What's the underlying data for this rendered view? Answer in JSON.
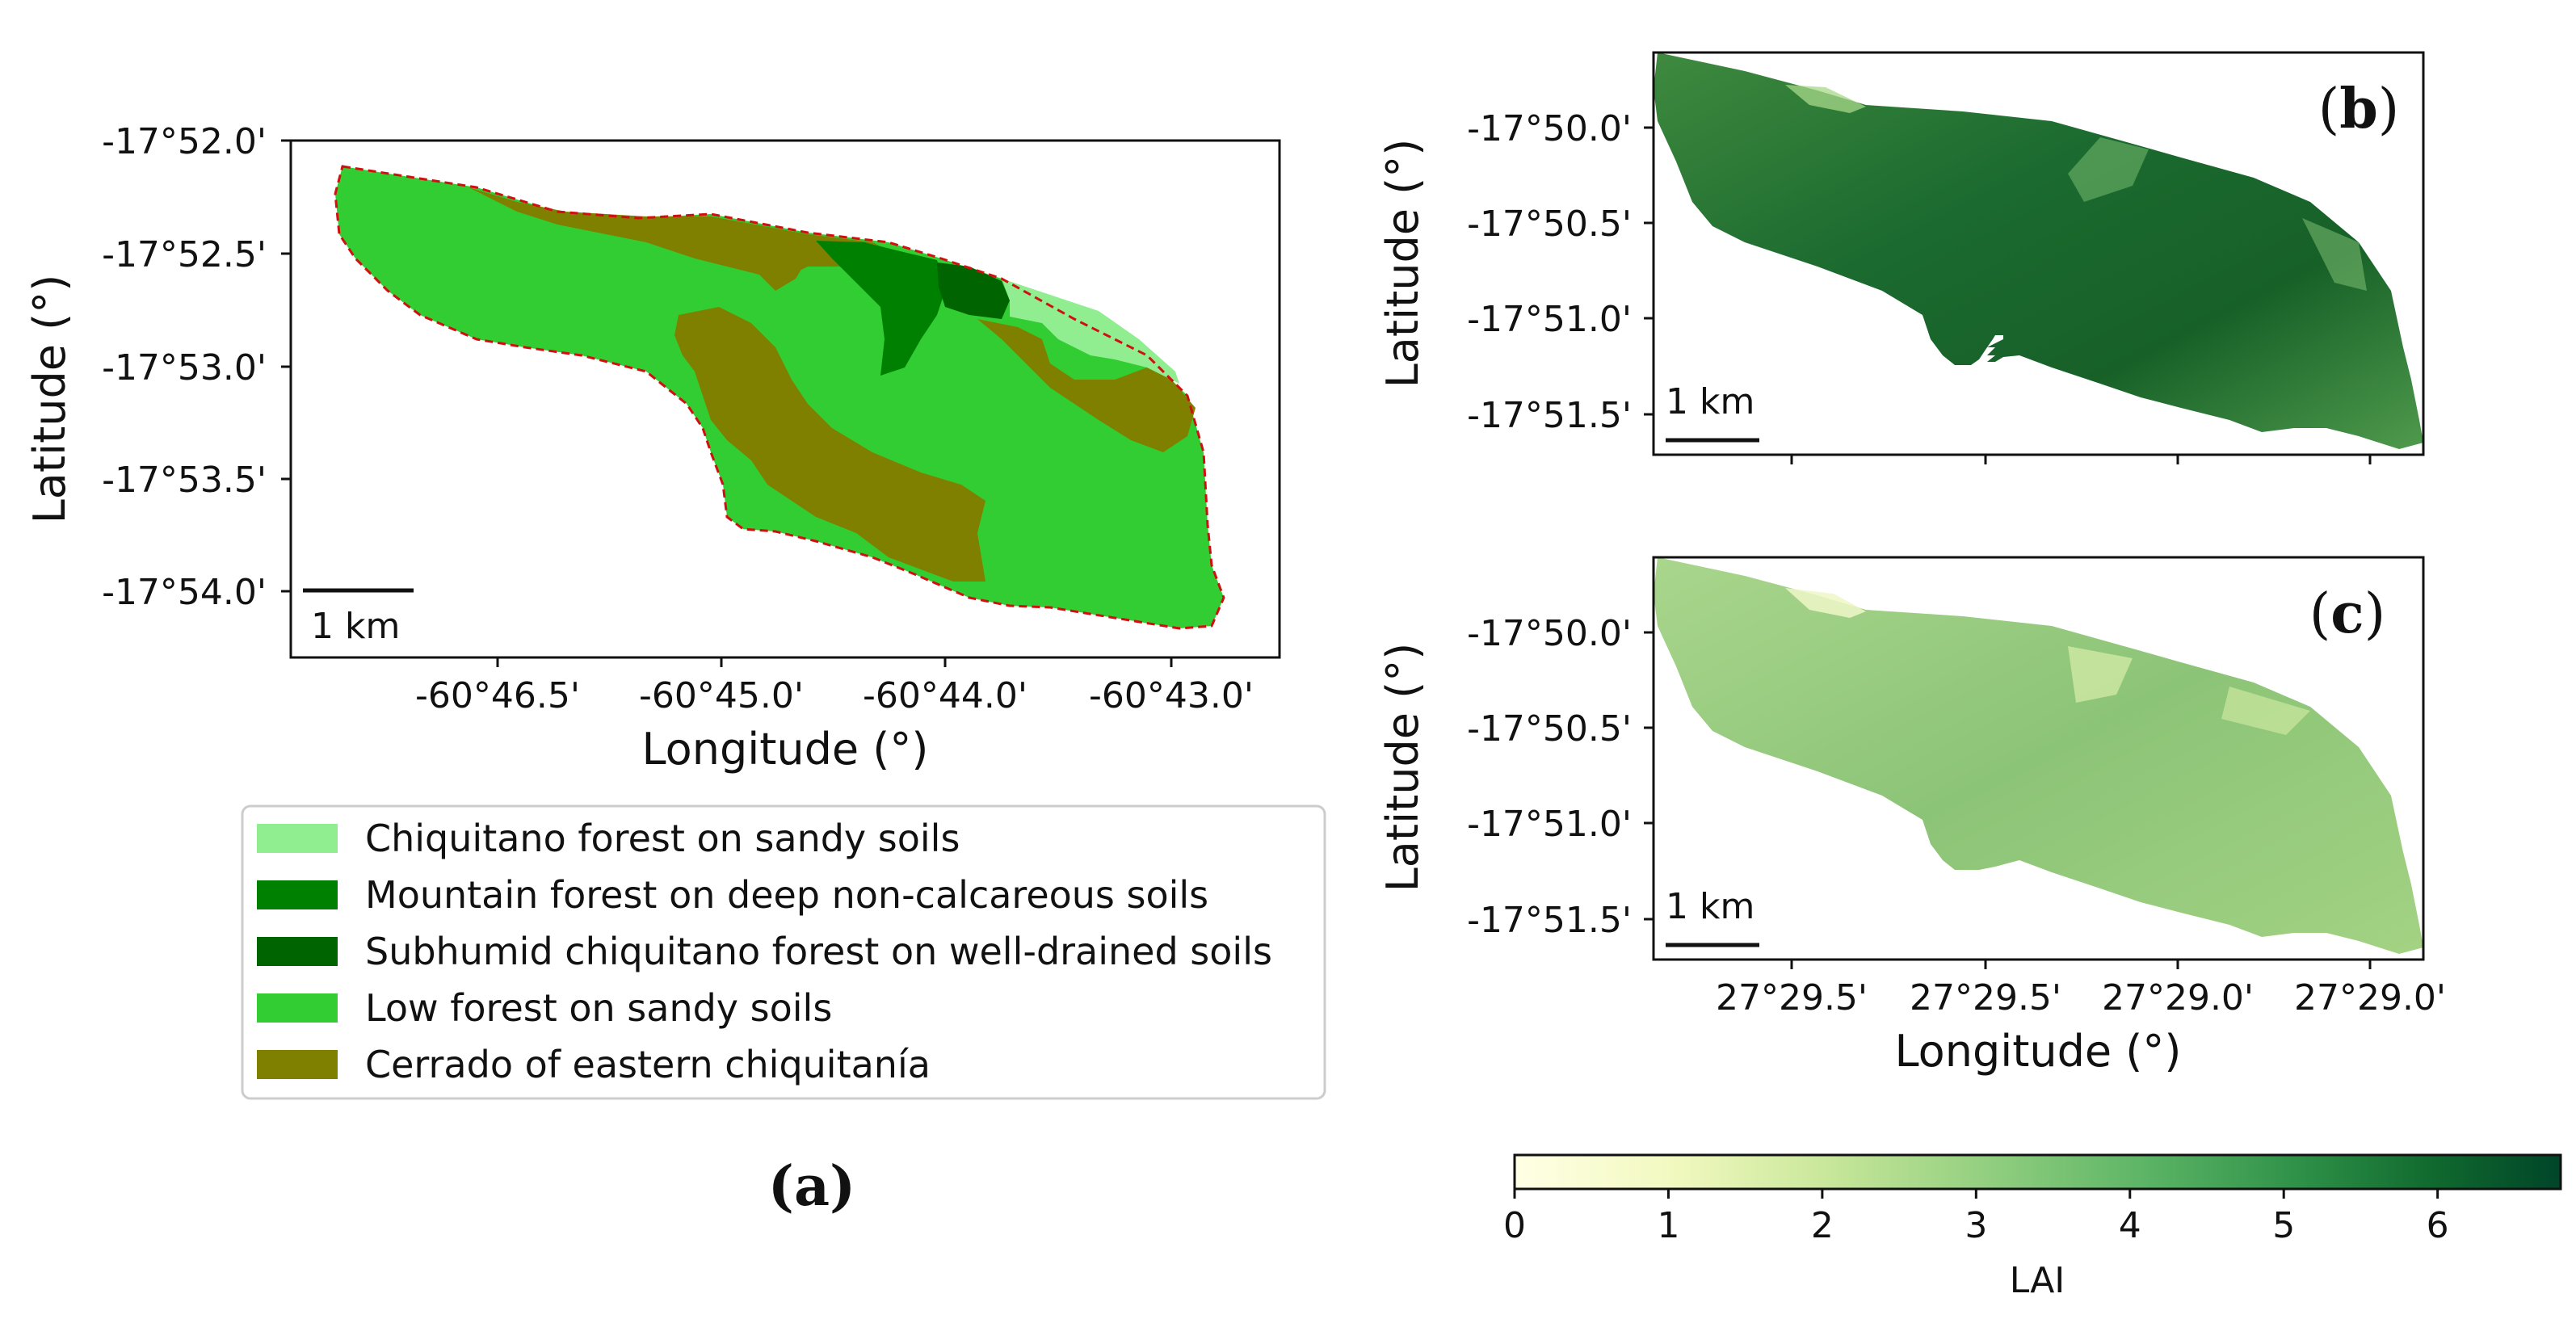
{
  "panel_a": {
    "label": "(a)",
    "xlabel": "Longitude (°)",
    "ylabel": "Latitude (°)",
    "xticks": [
      "-60°46.5'",
      "-60°45.0'",
      "-60°44.0'",
      "-60°43.0'"
    ],
    "yticks": [
      "-17°52.0'",
      "-17°52.5'",
      "-17°53.0'",
      "-17°53.5'",
      "-17°54.0'"
    ],
    "scalebar": "1 km"
  },
  "legend": {
    "items": [
      {
        "label": "Chiquitano forest on sandy soils",
        "color": "#90ee90"
      },
      {
        "label": "Mountain forest on deep non-calcareous soils",
        "color": "#008000"
      },
      {
        "label": "Subhumid chiquitano forest on well-drained soils",
        "color": "#006400"
      },
      {
        "label": "Low forest on sandy soils",
        "color": "#32cd32"
      },
      {
        "label": "Cerrado of eastern chiquitanía",
        "color": "#808000"
      }
    ]
  },
  "panel_b": {
    "label": "b",
    "ylabel": "Latitude (°)",
    "yticks": [
      "-17°50.0'",
      "-17°50.5'",
      "-17°51.0'",
      "-17°51.5'"
    ],
    "scalebar": "1 km"
  },
  "panel_c": {
    "label": "c",
    "ylabel": "Latitude (°)",
    "yticks": [
      "-17°50.0'",
      "-17°50.5'",
      "-17°51.0'",
      "-17°51.5'"
    ],
    "xticks": [
      "27°29.5'",
      "27°29.5'",
      "27°29.0'",
      "27°29.0'"
    ],
    "xlabel": "Longitude (°)",
    "scalebar": "1 km"
  },
  "colorbar": {
    "label": "LAI",
    "ticks": [
      "0",
      "1",
      "2",
      "3",
      "4",
      "5",
      "6"
    ],
    "min": 0,
    "max": 6.8
  }
}
